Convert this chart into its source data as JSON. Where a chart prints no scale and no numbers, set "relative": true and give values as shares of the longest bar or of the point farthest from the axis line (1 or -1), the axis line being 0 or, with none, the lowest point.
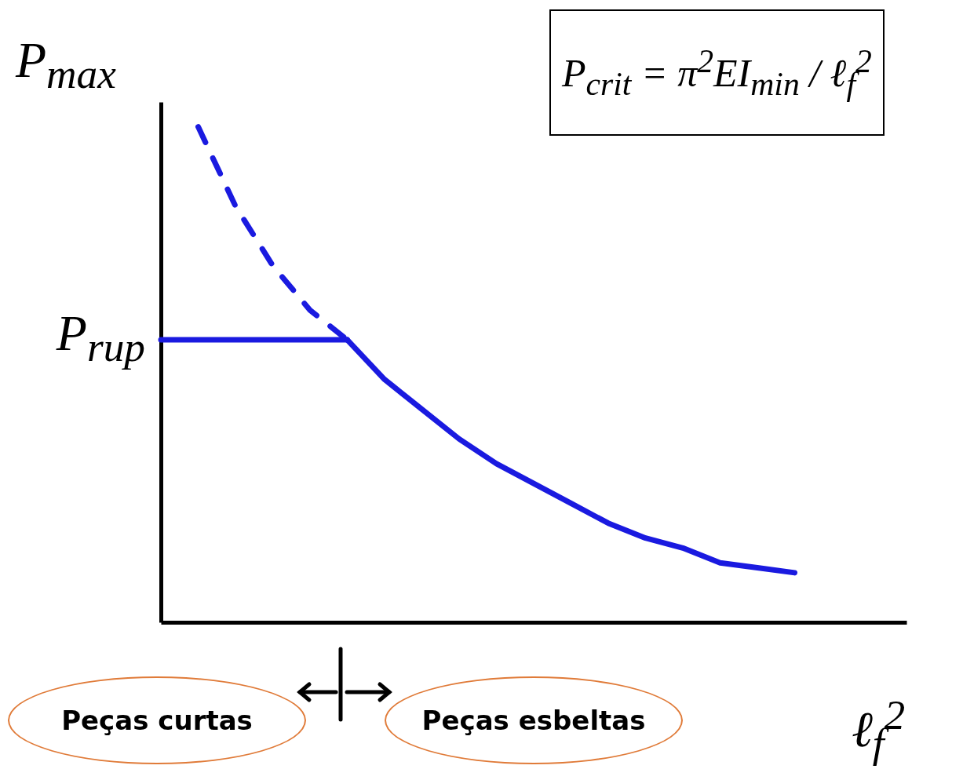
{
  "chart_data": {
    "type": "line",
    "relative": true,
    "ylabel": "P$_{max}$",
    "xlabel": "ℓ$_{f}$$^{2}$",
    "categories": [
      null,
      null,
      null,
      null,
      null,
      null,
      null,
      null,
      null,
      null,
      null,
      null,
      null,
      null,
      null,
      null,
      null,
      null,
      null,
      null,
      null
    ],
    "series": [
      {
        "color": "#1a1ae0",
        "line_style": "dashed",
        "values": [
          null,
          1,
          0.84,
          0.72,
          0.63,
          0.57,
          null,
          null,
          null,
          null,
          null,
          null,
          null,
          null,
          null,
          null,
          null,
          null,
          null,
          null,
          null
        ]
      },
      {
        "color": "#1a1ae0",
        "line_style": "solid",
        "values": [
          0.57,
          0.57,
          0.57,
          0.57,
          0.57,
          0.57,
          null,
          null,
          null,
          null,
          null,
          null,
          null,
          null,
          null,
          null,
          null,
          null,
          null,
          null,
          null
        ]
      },
      {
        "color": "#1a1ae0",
        "line_style": "solid",
        "values": [
          null,
          null,
          null,
          null,
          null,
          0.57,
          0.49,
          0.43,
          0.37,
          0.32,
          0.28,
          0.24,
          0.2,
          0.17,
          0.15,
          0.12,
          0.11,
          0.1,
          null,
          null,
          null
        ]
      }
    ],
    "annotations": [
      "P$_{rup}$",
      "P$_{crit}$ = π$^{2}$EI$_{min}$ / ℓ$_{f}$$^{2}$",
      "Peças curtas",
      "Peças esbeltas"
    ],
    "grid": false,
    "marker": "none"
  }
}
